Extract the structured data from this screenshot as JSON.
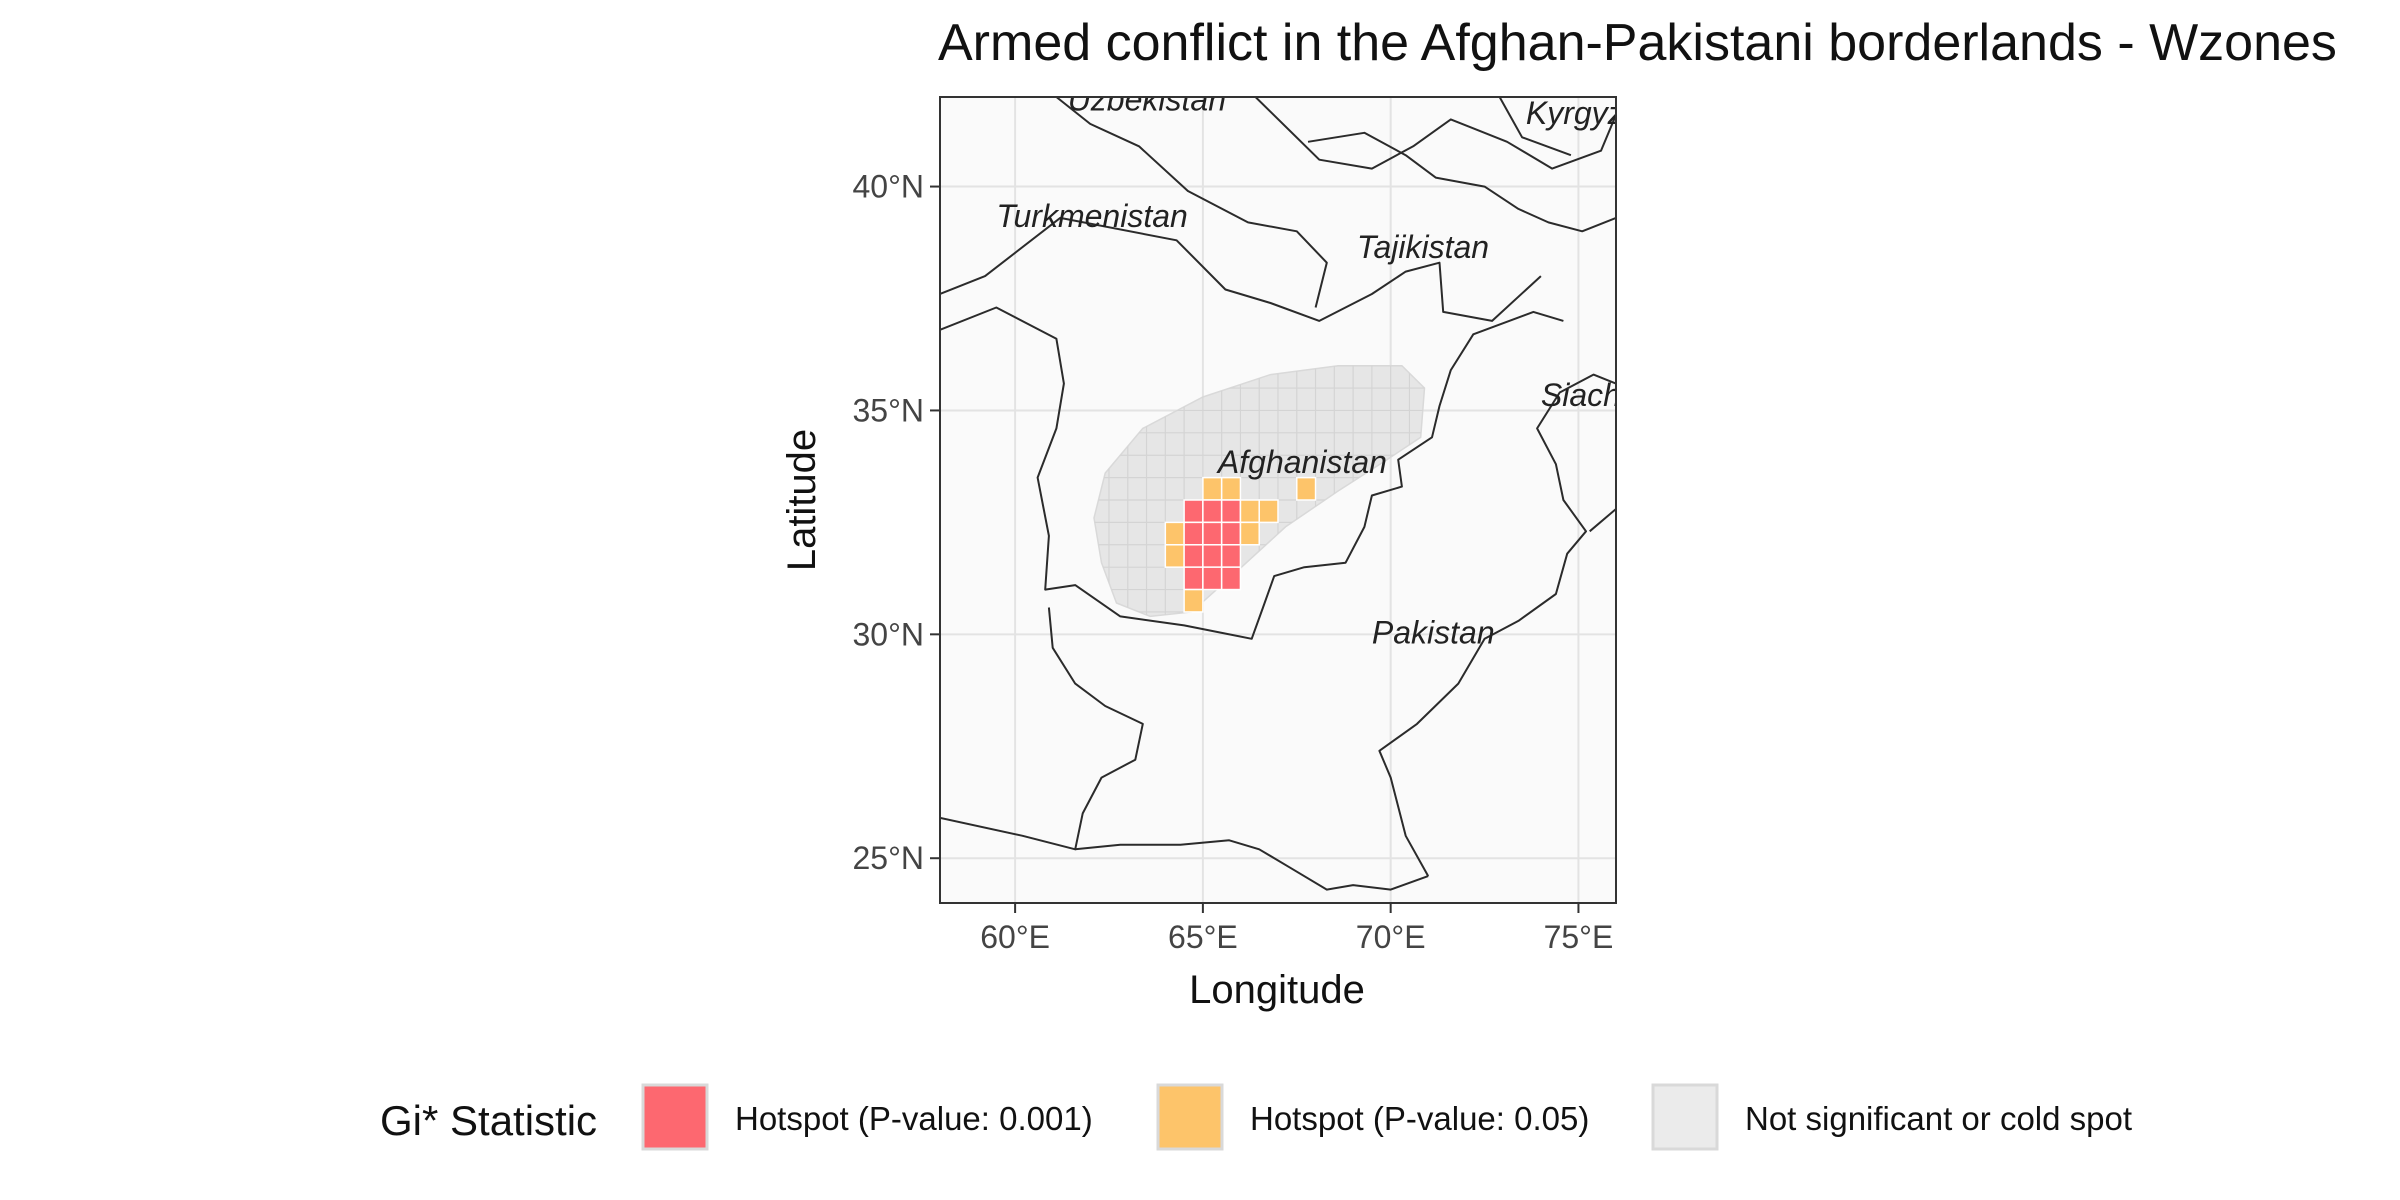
{
  "title": "Armed conflict in the Afghan-Pakistani borderlands - Wzones",
  "map": {
    "xlabel": "Longitude",
    "ylabel": "Latitude",
    "xlim": [
      58,
      76
    ],
    "ylim": [
      24,
      42
    ],
    "x_ticks": [
      {
        "value": 60,
        "label": "60°E"
      },
      {
        "value": 65,
        "label": "65°E"
      },
      {
        "value": 70,
        "label": "70°E"
      },
      {
        "value": 75,
        "label": "75°E"
      }
    ],
    "y_ticks": [
      {
        "value": 25,
        "label": "25°N"
      },
      {
        "value": 30,
        "label": "30°N"
      },
      {
        "value": 35,
        "label": "35°N"
      },
      {
        "value": 40,
        "label": "40°N"
      }
    ],
    "grid": true,
    "colors": {
      "panel_background": "#fafafa",
      "gridline": "#e3e3e3",
      "border_line": "#2b2b2b",
      "zone_fill": "#e6e6e6"
    },
    "country_labels": [
      {
        "name": "Uzbekistan",
        "lon": 61.4,
        "lat": 41.7
      },
      {
        "name": "Turkmenistan",
        "lon": 59.5,
        "lat": 39.1
      },
      {
        "name": "Kyrgyzstan",
        "lon": 73.6,
        "lat": 41.4
      },
      {
        "name": "Tajikistan",
        "lon": 69.1,
        "lat": 38.4
      },
      {
        "name": "Siachen",
        "lon": 74.0,
        "lat": 35.1
      },
      {
        "name": "Afghanistan",
        "lon": 65.4,
        "lat": 33.6
      },
      {
        "name": "Pakistan",
        "lon": 69.5,
        "lat": 29.8
      }
    ],
    "zone_outline": [
      [
        62.3,
        31.6
      ],
      [
        62.1,
        32.6
      ],
      [
        62.4,
        33.6
      ],
      [
        63.4,
        34.6
      ],
      [
        65.0,
        35.3
      ],
      [
        66.8,
        35.8
      ],
      [
        68.6,
        36.0
      ],
      [
        70.3,
        36.0
      ],
      [
        70.9,
        35.5
      ],
      [
        70.8,
        34.4
      ],
      [
        69.9,
        33.9
      ],
      [
        68.6,
        33.2
      ],
      [
        67.2,
        32.4
      ],
      [
        65.9,
        31.4
      ],
      [
        64.7,
        30.5
      ],
      [
        63.6,
        30.4
      ],
      [
        62.7,
        30.7
      ],
      [
        62.3,
        31.6
      ]
    ],
    "cells": [
      {
        "lon": 65.0,
        "lat": 33.0,
        "class": "p05"
      },
      {
        "lon": 65.5,
        "lat": 33.0,
        "class": "p05"
      },
      {
        "lon": 67.5,
        "lat": 33.0,
        "class": "p05"
      },
      {
        "lon": 64.5,
        "lat": 32.5,
        "class": "p001"
      },
      {
        "lon": 65.0,
        "lat": 32.5,
        "class": "p001"
      },
      {
        "lon": 65.5,
        "lat": 32.5,
        "class": "p001"
      },
      {
        "lon": 66.0,
        "lat": 32.5,
        "class": "p05"
      },
      {
        "lon": 66.5,
        "lat": 32.5,
        "class": "p05"
      },
      {
        "lon": 64.0,
        "lat": 32.0,
        "class": "p05"
      },
      {
        "lon": 64.5,
        "lat": 32.0,
        "class": "p001"
      },
      {
        "lon": 65.0,
        "lat": 32.0,
        "class": "p001"
      },
      {
        "lon": 65.5,
        "lat": 32.0,
        "class": "p001"
      },
      {
        "lon": 66.0,
        "lat": 32.0,
        "class": "p05"
      },
      {
        "lon": 64.0,
        "lat": 31.5,
        "class": "p05"
      },
      {
        "lon": 64.5,
        "lat": 31.5,
        "class": "p001"
      },
      {
        "lon": 65.0,
        "lat": 31.5,
        "class": "p001"
      },
      {
        "lon": 65.5,
        "lat": 31.5,
        "class": "p001"
      },
      {
        "lon": 64.5,
        "lat": 31.0,
        "class": "p001"
      },
      {
        "lon": 65.0,
        "lat": 31.0,
        "class": "p001"
      },
      {
        "lon": 65.5,
        "lat": 31.0,
        "class": "p001"
      },
      {
        "lon": 64.5,
        "lat": 30.5,
        "class": "p05"
      }
    ],
    "borders": [
      [
        [
          58.0,
          36.8
        ],
        [
          59.5,
          37.3
        ],
        [
          61.1,
          36.6
        ],
        [
          61.3,
          35.6
        ],
        [
          61.1,
          34.6
        ],
        [
          60.6,
          33.5
        ],
        [
          60.9,
          32.2
        ],
        [
          60.8,
          31.0
        ],
        [
          61.6,
          31.1
        ],
        [
          62.8,
          30.4
        ],
        [
          64.5,
          30.2
        ],
        [
          66.3,
          29.9
        ],
        [
          66.6,
          30.6
        ],
        [
          66.9,
          31.3
        ],
        [
          67.7,
          31.5
        ],
        [
          68.8,
          31.6
        ],
        [
          69.3,
          32.4
        ],
        [
          69.5,
          33.1
        ],
        [
          70.3,
          33.3
        ],
        [
          70.2,
          33.9
        ],
        [
          71.1,
          34.4
        ],
        [
          71.3,
          35.1
        ],
        [
          71.6,
          35.9
        ],
        [
          72.2,
          36.7
        ],
        [
          73.8,
          37.2
        ],
        [
          74.6,
          37.0
        ]
      ],
      [
        [
          58.0,
          37.6
        ],
        [
          59.2,
          38.0
        ],
        [
          61.2,
          39.3
        ],
        [
          64.3,
          38.8
        ],
        [
          65.6,
          37.7
        ],
        [
          66.8,
          37.4
        ],
        [
          68.1,
          37.0
        ],
        [
          69.5,
          37.6
        ],
        [
          70.4,
          38.1
        ],
        [
          71.3,
          38.3
        ],
        [
          71.4,
          37.2
        ],
        [
          72.7,
          37.0
        ],
        [
          74.0,
          38.0
        ]
      ],
      [
        [
          61.1,
          42.0
        ],
        [
          62.0,
          41.4
        ],
        [
          63.3,
          40.9
        ],
        [
          64.6,
          39.9
        ],
        [
          66.2,
          39.2
        ],
        [
          67.5,
          39.0
        ],
        [
          68.3,
          38.3
        ],
        [
          68.0,
          37.3
        ]
      ],
      [
        [
          66.4,
          42.0
        ],
        [
          68.1,
          40.6
        ],
        [
          69.5,
          40.4
        ],
        [
          70.6,
          40.9
        ],
        [
          71.6,
          41.5
        ],
        [
          73.1,
          41.0
        ],
        [
          74.3,
          40.4
        ],
        [
          75.6,
          40.8
        ],
        [
          76.0,
          41.6
        ]
      ],
      [
        [
          67.8,
          41.0
        ],
        [
          69.3,
          41.2
        ],
        [
          70.4,
          40.7
        ],
        [
          71.2,
          40.2
        ],
        [
          72.5,
          40.0
        ],
        [
          73.4,
          39.5
        ],
        [
          74.2,
          39.2
        ],
        [
          75.1,
          39.0
        ],
        [
          76.0,
          39.3
        ]
      ],
      [
        [
          72.9,
          42.0
        ],
        [
          73.5,
          41.1
        ],
        [
          74.8,
          40.7
        ]
      ],
      [
        [
          58.0,
          25.9
        ],
        [
          60.2,
          25.5
        ],
        [
          61.6,
          25.2
        ],
        [
          61.8,
          26.0
        ],
        [
          62.3,
          26.8
        ],
        [
          63.2,
          27.2
        ],
        [
          63.4,
          28.0
        ],
        [
          62.4,
          28.4
        ],
        [
          61.6,
          28.9
        ],
        [
          61.0,
          29.7
        ],
        [
          60.9,
          30.6
        ]
      ],
      [
        [
          61.6,
          25.2
        ],
        [
          62.8,
          25.3
        ],
        [
          64.4,
          25.3
        ],
        [
          65.7,
          25.4
        ],
        [
          66.5,
          25.2
        ],
        [
          67.3,
          24.8
        ],
        [
          68.3,
          24.3
        ],
        [
          69.0,
          24.4
        ],
        [
          70.0,
          24.3
        ],
        [
          71.0,
          24.6
        ]
      ],
      [
        [
          71.0,
          24.6
        ],
        [
          70.4,
          25.5
        ],
        [
          70.0,
          26.8
        ],
        [
          69.7,
          27.4
        ],
        [
          70.7,
          28.0
        ],
        [
          71.8,
          28.9
        ],
        [
          72.5,
          29.9
        ],
        [
          73.4,
          30.3
        ],
        [
          74.4,
          30.9
        ],
        [
          74.7,
          31.8
        ],
        [
          75.2,
          32.3
        ],
        [
          74.6,
          33.0
        ],
        [
          74.4,
          33.8
        ],
        [
          73.9,
          34.6
        ],
        [
          74.5,
          35.4
        ],
        [
          75.4,
          35.8
        ],
        [
          76.0,
          35.6
        ]
      ],
      [
        [
          76.0,
          32.8
        ],
        [
          75.3,
          32.3
        ]
      ]
    ]
  },
  "legend": {
    "title": "Gi* Statistic",
    "items": [
      {
        "label": "Hotspot (P-value: 0.001)",
        "color": "#fd6870"
      },
      {
        "label": "Hotspot (P-value: 0.05)",
        "color": "#fdc46a"
      },
      {
        "label": "Not significant or cold spot",
        "color": "#ebebeb"
      }
    ]
  }
}
